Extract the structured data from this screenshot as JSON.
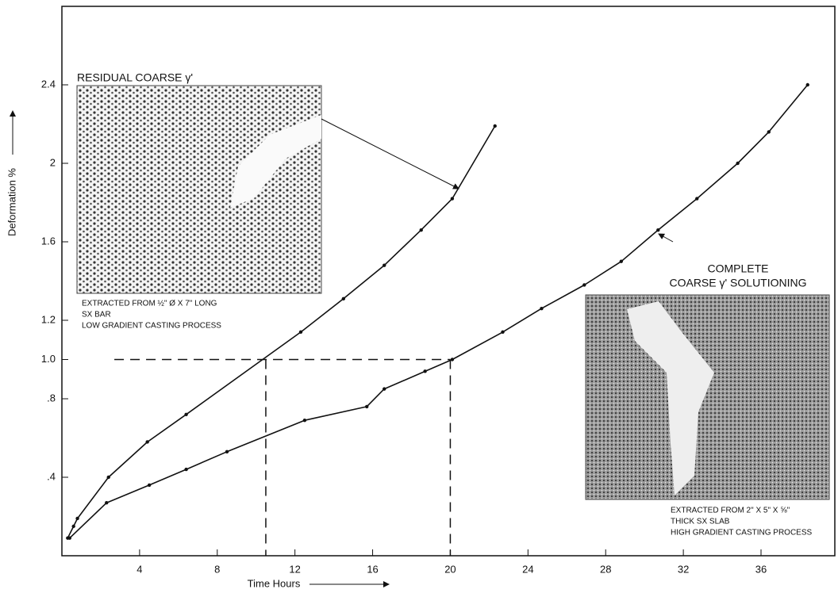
{
  "chart_data": {
    "type": "line",
    "y_label": "Deformation %",
    "x_label": "Time Hours",
    "xlim": [
      0,
      39.8
    ],
    "ylim": [
      0,
      2.8
    ],
    "xticks": [
      4,
      8,
      12,
      16,
      20,
      24,
      28,
      32,
      36
    ],
    "yticks": [
      {
        "value": 0.4,
        "label": ".4"
      },
      {
        "value": 0.8,
        "label": ".8"
      },
      {
        "value": 1,
        "label": "1.0"
      },
      1.2,
      1.6,
      2,
      2.4
    ],
    "series": [
      {
        "color": "#111111",
        "x": [
          0.3,
          0.6,
          0.8,
          2.4,
          4.4,
          6.4,
          12.3,
          14.5,
          16.6,
          18.5,
          20.1,
          22.3
        ],
        "values": [
          0.09,
          0.15,
          0.19,
          0.4,
          0.58,
          0.72,
          1.14,
          1.31,
          1.48,
          1.66,
          1.82,
          2.19
        ]
      },
      {
        "color": "#111111",
        "x": [
          0.4,
          2.3,
          4.5,
          6.4,
          8.5,
          12.5,
          15.7,
          16.6,
          18.7,
          20.1,
          22.7,
          24.7,
          26.9,
          28.8,
          30.7,
          32.7,
          34.8,
          36.4,
          38.4
        ],
        "values": [
          0.09,
          0.27,
          0.36,
          0.44,
          0.53,
          0.69,
          0.76,
          0.85,
          0.94,
          1.0,
          1.14,
          1.26,
          1.38,
          1.5,
          1.66,
          1.82,
          2.0,
          2.16,
          2.4
        ]
      }
    ],
    "reference_lines": {
      "y": 1,
      "x_from": 2.7,
      "x_to": 20,
      "x": [
        10.5,
        20
      ]
    },
    "annotations": {
      "left_title": "RESIDUAL COARSE γ'",
      "left_caption": [
        "EXTRACTED FROM ½\" Ø X 7\" LONG",
        "SX BAR",
        "LOW GRADIENT CASTING PROCESS"
      ],
      "right_title": [
        "COMPLETE",
        "COARSE γ' SOLUTIONING"
      ],
      "right_caption": [
        "EXTRACTED FROM 2\" X 5\" X ⅝\"",
        "THICK SX SLAB",
        "HIGH GRADIENT CASTING PROCESS"
      ]
    }
  }
}
